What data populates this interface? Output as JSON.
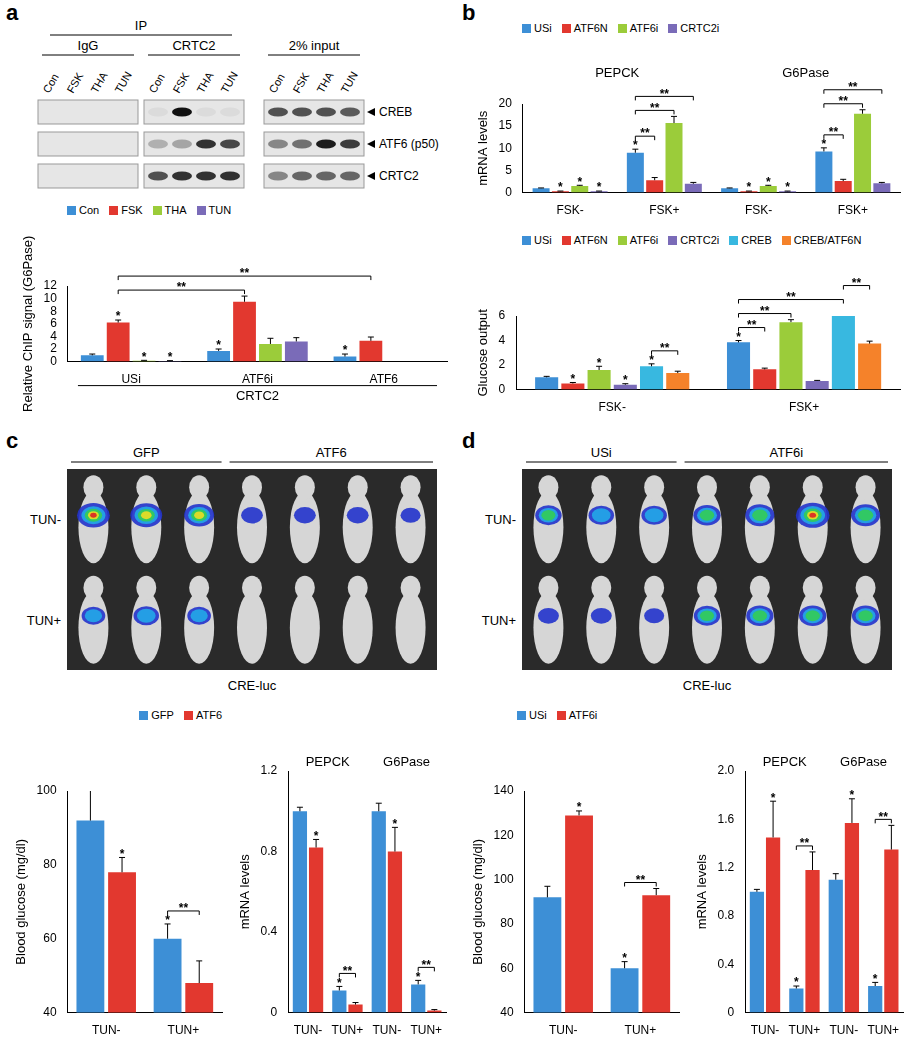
{
  "panel_labels": [
    "a",
    "b",
    "c",
    "d"
  ],
  "blot": {
    "ip_label": "IP",
    "groups": [
      {
        "label": "IgG",
        "ip": true,
        "lanes": [
          "Con",
          "FSK",
          "THA",
          "TUN"
        ]
      },
      {
        "label": "CRTC2",
        "ip": true,
        "lanes": [
          "Con",
          "FSK",
          "THA",
          "TUN"
        ]
      },
      {
        "label": "2% input",
        "ip": false,
        "lanes": [
          "Con",
          "FSK",
          "THA",
          "TUN"
        ]
      }
    ],
    "rows": [
      {
        "label": "CREB",
        "intensity": [
          [
            0,
            0,
            0,
            0
          ],
          [
            0.05,
            1.0,
            0.05,
            0.05
          ],
          [
            0.7,
            0.7,
            0.7,
            0.65
          ]
        ]
      },
      {
        "label": "ATF6 (p50)",
        "intensity": [
          [
            0,
            0,
            0,
            0
          ],
          [
            0.25,
            0.3,
            0.85,
            0.75
          ],
          [
            0.45,
            0.55,
            0.95,
            0.8
          ]
        ]
      },
      {
        "label": "CRTC2",
        "intensity": [
          [
            0,
            0,
            0,
            0
          ],
          [
            0.7,
            0.85,
            0.85,
            0.85
          ],
          [
            0.45,
            0.6,
            0.6,
            0.6
          ]
        ]
      }
    ]
  },
  "luminescence": [
    {
      "caption": "CRE-luc",
      "rows": [
        "TUN-",
        "TUN+"
      ],
      "groups": [
        {
          "label": "GFP",
          "signal": [
            [
              0.9,
              0.85,
              0.75
            ],
            [
              0.4,
              0.5,
              0.4
            ]
          ]
        },
        {
          "label": "ATF6",
          "signal": [
            [
              0.3,
              0.3,
              0.3,
              0.2
            ],
            [
              0,
              0,
              0,
              0
            ]
          ]
        }
      ]
    },
    {
      "caption": "CRE-luc",
      "rows": [
        "TUN-",
        "TUN+"
      ],
      "groups": [
        {
          "label": "USi",
          "signal": [
            [
              0.55,
              0.5,
              0.5
            ],
            [
              0.25,
              0.25,
              0.2
            ]
          ]
        },
        {
          "label": "ATF6i",
          "signal": [
            [
              0.6,
              0.7,
              0.95,
              0.7
            ],
            [
              0.55,
              0.6,
              0.6,
              0.6
            ]
          ]
        }
      ]
    }
  ],
  "chart_data": [
    {
      "type": "bar",
      "y_label": "Relative ChIP signal (G6Pase)",
      "categories": [
        "USi",
        "ATF6i",
        "ATF6"
      ],
      "category_groups": [
        {
          "label": "CRTC2",
          "categories": [
            "USi",
            "ATF6i",
            "ATF6"
          ]
        }
      ],
      "series": [
        {
          "name": "Con",
          "color": "#3d8fd6",
          "values": [
            1.0,
            1.7,
            0.8
          ],
          "errors": [
            0.2,
            0.3,
            0.4
          ]
        },
        {
          "name": "FSK",
          "color": "#e2382f",
          "values": [
            6.2,
            9.5,
            3.3
          ],
          "errors": [
            0.4,
            0.9,
            0.6
          ]
        },
        {
          "name": "THA",
          "color": "#9bcc3a",
          "values": [
            0.15,
            2.8,
            null
          ],
          "errors": [
            0.05,
            0.9,
            null
          ]
        },
        {
          "name": "TUN",
          "color": "#7a6bb8",
          "values": [
            0.1,
            3.2,
            null
          ],
          "errors": [
            0.05,
            0.6,
            null
          ]
        }
      ],
      "ylim": [
        0,
        12
      ],
      "yticks": [
        0,
        2,
        4,
        6,
        8,
        10,
        12
      ],
      "grid": false,
      "legend": "top-left",
      "stars": [
        {
          "series": "FSK",
          "category": 0,
          "label": "*"
        },
        {
          "series": "THA",
          "category": 0,
          "label": "*"
        },
        {
          "series": "TUN",
          "category": 0,
          "label": "*"
        },
        {
          "series": "Con",
          "category": 1,
          "label": "*"
        },
        {
          "series": "Con",
          "category": 2,
          "label": "*"
        }
      ],
      "brackets": [
        {
          "from": {
            "series": "FSK",
            "category": 0
          },
          "to": {
            "series": "FSK",
            "category": 1
          },
          "label": "**"
        },
        {
          "from": {
            "series": "FSK",
            "category": 0
          },
          "to": {
            "series": "FSK",
            "category": 2
          },
          "label": "**"
        }
      ]
    },
    {
      "type": "bar",
      "y_label": "mRNA levels",
      "categories": [
        "FSK-",
        "FSK+",
        "FSK-",
        "FSK+"
      ],
      "category_groups": [
        {
          "label": "PEPCK",
          "categories": [
            "FSK-",
            "FSK+"
          ]
        },
        {
          "label": "G6Pase",
          "categories": [
            "FSK-",
            "FSK+"
          ]
        }
      ],
      "series": [
        {
          "name": "USi",
          "color": "#3d8fd6",
          "values": [
            1.0,
            9.0,
            1.0,
            9.3
          ],
          "errors": [
            0.05,
            0.8,
            0.05,
            0.8
          ]
        },
        {
          "name": "ATF6N",
          "color": "#e2382f",
          "values": [
            0.3,
            2.8,
            0.3,
            2.6
          ],
          "errors": [
            0.05,
            0.6,
            0.05,
            0.4
          ]
        },
        {
          "name": "ATF6i",
          "color": "#9bcc3a",
          "values": [
            1.5,
            15.7,
            1.5,
            17.8
          ],
          "errors": [
            0.15,
            1.5,
            0.15,
            0.9
          ]
        },
        {
          "name": "CRTC2i",
          "color": "#7a6bb8",
          "values": [
            0.3,
            2.0,
            0.3,
            2.1
          ],
          "errors": [
            0.05,
            0.3,
            0.05,
            0.2
          ]
        }
      ],
      "ylim": [
        0,
        20
      ],
      "yticks": [
        0,
        5,
        10,
        15,
        20
      ],
      "grid": false,
      "legend": "top-left",
      "stars": [
        {
          "series": "ATF6N",
          "category": 0,
          "label": "*"
        },
        {
          "series": "ATF6i",
          "category": 0,
          "label": "*"
        },
        {
          "series": "CRTC2i",
          "category": 0,
          "label": "*"
        },
        {
          "series": "USi",
          "category": 1,
          "label": "*"
        },
        {
          "series": "ATF6N",
          "category": 2,
          "label": "*"
        },
        {
          "series": "ATF6i",
          "category": 2,
          "label": "*"
        },
        {
          "series": "CRTC2i",
          "category": 2,
          "label": "*"
        },
        {
          "series": "USi",
          "category": 3,
          "label": "*"
        }
      ],
      "brackets": [
        {
          "from": {
            "series": "USi",
            "category": 1
          },
          "to": {
            "series": "ATF6N",
            "category": 1
          },
          "label": "**"
        },
        {
          "from": {
            "series": "USi",
            "category": 1
          },
          "to": {
            "series": "ATF6i",
            "category": 1
          },
          "label": "**"
        },
        {
          "from": {
            "series": "USi",
            "category": 1
          },
          "to": {
            "series": "CRTC2i",
            "category": 1
          },
          "label": "**"
        },
        {
          "from": {
            "series": "USi",
            "category": 3
          },
          "to": {
            "series": "ATF6N",
            "category": 3
          },
          "label": "**"
        },
        {
          "from": {
            "series": "USi",
            "category": 3
          },
          "to": {
            "series": "ATF6i",
            "category": 3
          },
          "label": "**"
        },
        {
          "from": {
            "series": "USi",
            "category": 3
          },
          "to": {
            "series": "CRTC2i",
            "category": 3
          },
          "label": "**"
        }
      ]
    },
    {
      "type": "bar",
      "y_label": "Glucose output",
      "categories": [
        "FSK-",
        "FSK+"
      ],
      "series": [
        {
          "name": "USi",
          "color": "#3d8fd6",
          "values": [
            1.0,
            3.85
          ],
          "errors": [
            0.08,
            0.15
          ]
        },
        {
          "name": "ATF6N",
          "color": "#e2382f",
          "values": [
            0.5,
            1.65
          ],
          "errors": [
            0.08,
            0.1
          ]
        },
        {
          "name": "ATF6i",
          "color": "#9bcc3a",
          "values": [
            1.6,
            5.5
          ],
          "errors": [
            0.3,
            0.2
          ]
        },
        {
          "name": "CRTC2i",
          "color": "#7a6bb8",
          "values": [
            0.4,
            0.7
          ],
          "errors": [
            0.08,
            0.05
          ]
        },
        {
          "name": "CREB",
          "color": "#38b8e0",
          "values": [
            1.9,
            6.0
          ],
          "errors": [
            0.2,
            0.25
          ]
        },
        {
          "name": "CREB/ATF6N",
          "color": "#f5822a",
          "values": [
            1.35,
            3.75
          ],
          "errors": [
            0.15,
            0.2
          ]
        }
      ],
      "ylim": [
        0,
        6
      ],
      "yticks": [
        0,
        2,
        4,
        6
      ],
      "grid": false,
      "legend": "top-left",
      "stars": [
        {
          "series": "ATF6N",
          "category": 0,
          "label": "*"
        },
        {
          "series": "ATF6i",
          "category": 0,
          "label": "*"
        },
        {
          "series": "CRTC2i",
          "category": 0,
          "label": "*"
        },
        {
          "series": "CREB",
          "category": 0,
          "label": "*"
        },
        {
          "series": "USi",
          "category": 1,
          "label": "*"
        }
      ],
      "brackets": [
        {
          "from": {
            "series": "CREB",
            "category": 0
          },
          "to": {
            "series": "CREB/ATF6N",
            "category": 0
          },
          "label": "**"
        },
        {
          "from": {
            "series": "USi",
            "category": 1
          },
          "to": {
            "series": "ATF6N",
            "category": 1
          },
          "label": "**"
        },
        {
          "from": {
            "series": "USi",
            "category": 1
          },
          "to": {
            "series": "ATF6i",
            "category": 1
          },
          "label": "**"
        },
        {
          "from": {
            "series": "USi",
            "category": 1
          },
          "to": {
            "series": "CREB",
            "category": 1
          },
          "label": "**"
        },
        {
          "from": {
            "series": "CREB",
            "category": 1
          },
          "to": {
            "series": "CREB/ATF6N",
            "category": 1
          },
          "label": "**"
        }
      ]
    },
    {
      "type": "bar",
      "y_label": "Blood glucose (mg/dl)",
      "categories": [
        "TUN-",
        "TUN+"
      ],
      "series": [
        {
          "name": "GFP",
          "color": "#3d8fd6",
          "values": [
            92,
            60
          ],
          "errors": [
            10,
            4
          ]
        },
        {
          "name": "ATF6",
          "color": "#e2382f",
          "values": [
            78,
            48
          ],
          "errors": [
            4,
            6
          ]
        }
      ],
      "ylim": [
        40,
        100
      ],
      "yticks": [
        40,
        60,
        80,
        100
      ],
      "grid": false,
      "legend": "top-right",
      "stars": [
        {
          "series": "ATF6",
          "category": 0,
          "label": "*"
        },
        {
          "series": "GFP",
          "category": 1,
          "label": "*"
        }
      ],
      "brackets": [
        {
          "from": {
            "series": "GFP",
            "category": 1
          },
          "to": {
            "series": "ATF6",
            "category": 1
          },
          "label": "**"
        }
      ]
    },
    {
      "type": "bar",
      "y_label": "mRNA levels",
      "categories": [
        "TUN-",
        "TUN+",
        "TUN-",
        "TUN+"
      ],
      "category_groups": [
        {
          "label": "PEPCK",
          "categories": [
            "TUN-",
            "TUN+"
          ]
        },
        {
          "label": "G6Pase",
          "categories": [
            "TUN-",
            "TUN+"
          ]
        }
      ],
      "series": [
        {
          "name": "GFP",
          "color": "#3d8fd6",
          "values": [
            1.0,
            0.11,
            1.0,
            0.14
          ],
          "errors": [
            0.02,
            0.02,
            0.04,
            0.02
          ]
        },
        {
          "name": "ATF6",
          "color": "#e2382f",
          "values": [
            0.82,
            0.04,
            0.8,
            0.01
          ],
          "errors": [
            0.04,
            0.01,
            0.12,
            0.005
          ]
        }
      ],
      "ylim": [
        0,
        1.2
      ],
      "yticks": [
        0,
        0.4,
        0.8,
        1.2
      ],
      "grid": false,
      "legend": false,
      "stars": [
        {
          "series": "ATF6",
          "category": 0,
          "label": "*"
        },
        {
          "series": "GFP",
          "category": 1,
          "label": "*"
        },
        {
          "series": "ATF6",
          "category": 2,
          "label": "*"
        },
        {
          "series": "GFP",
          "category": 3,
          "label": "*"
        }
      ],
      "brackets": [
        {
          "from": {
            "series": "GFP",
            "category": 1
          },
          "to": {
            "series": "ATF6",
            "category": 1
          },
          "label": "**"
        },
        {
          "from": {
            "series": "GFP",
            "category": 3
          },
          "to": {
            "series": "ATF6",
            "category": 3
          },
          "label": "**"
        }
      ]
    },
    {
      "type": "bar",
      "y_label": "Blood glucose (mg/dl)",
      "categories": [
        "TUN-",
        "TUN+"
      ],
      "series": [
        {
          "name": "USi",
          "color": "#3d8fd6",
          "values": [
            92,
            60
          ],
          "errors": [
            5,
            3
          ]
        },
        {
          "name": "ATF6i",
          "color": "#e2382f",
          "values": [
            129,
            93
          ],
          "errors": [
            2,
            3
          ]
        }
      ],
      "ylim": [
        40,
        140
      ],
      "yticks": [
        40,
        60,
        80,
        100,
        120,
        140
      ],
      "grid": false,
      "legend": "top-left",
      "stars": [
        {
          "series": "ATF6i",
          "category": 0,
          "label": "*"
        },
        {
          "series": "USi",
          "category": 1,
          "label": "*"
        }
      ],
      "brackets": [
        {
          "from": {
            "series": "USi",
            "category": 1
          },
          "to": {
            "series": "ATF6i",
            "category": 1
          },
          "label": "**"
        }
      ]
    },
    {
      "type": "bar",
      "y_label": "mRNA levels",
      "categories": [
        "TUN-",
        "TUN+",
        "TUN-",
        "TUN+"
      ],
      "category_groups": [
        {
          "label": "PEPCK",
          "categories": [
            "TUN-",
            "TUN+"
          ]
        },
        {
          "label": "G6Pase",
          "categories": [
            "TUN-",
            "TUN+"
          ]
        }
      ],
      "series": [
        {
          "name": "USi",
          "color": "#3d8fd6",
          "values": [
            1.0,
            0.2,
            1.1,
            0.22
          ],
          "errors": [
            0.02,
            0.02,
            0.05,
            0.03
          ]
        },
        {
          "name": "ATF6i",
          "color": "#e2382f",
          "values": [
            1.45,
            1.18,
            1.57,
            1.35
          ],
          "errors": [
            0.3,
            0.15,
            0.2,
            0.2
          ]
        }
      ],
      "ylim": [
        0,
        2
      ],
      "yticks": [
        0,
        0.4,
        0.8,
        1.2,
        1.6,
        {
          "value": 2,
          "label": "2.0"
        }
      ],
      "grid": false,
      "legend": false,
      "stars": [
        {
          "series": "ATF6i",
          "category": 0,
          "label": "*"
        },
        {
          "series": "USi",
          "category": 1,
          "label": "*"
        },
        {
          "series": "ATF6i",
          "category": 2,
          "label": "*"
        },
        {
          "series": "USi",
          "category": 3,
          "label": "*"
        }
      ],
      "brackets": [
        {
          "from": {
            "series": "USi",
            "category": 1
          },
          "to": {
            "series": "ATF6i",
            "category": 1
          },
          "label": "**"
        },
        {
          "from": {
            "series": "USi",
            "category": 3
          },
          "to": {
            "series": "ATF6i",
            "category": 3
          },
          "label": "**"
        }
      ]
    }
  ]
}
